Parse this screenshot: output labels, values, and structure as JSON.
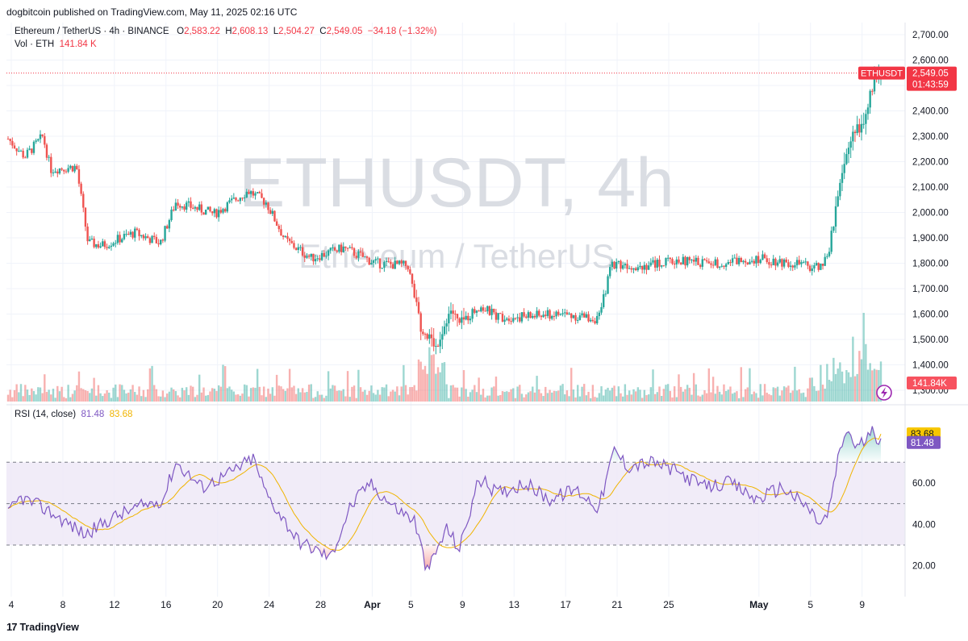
{
  "publisher_line": "dogbitcoin published on TradingView.com, May 11, 2025 02:16 UTC",
  "legend": {
    "symbol": "Ethereum / TetherUS · 4h · BINANCE",
    "o_label": "O",
    "o": "2,583.22",
    "h_label": "H",
    "h": "2,608.13",
    "l_label": "L",
    "l": "2,504.27",
    "c_label": "C",
    "c": "2,549.05",
    "change": "−34.18 (−1.32%)",
    "vol_label": "Vol · ETH",
    "vol": "141.84 K"
  },
  "rsi_legend": {
    "label": "RSI (14, close)",
    "rsi": "81.48",
    "ma": "83.68"
  },
  "watermark": {
    "main": "ETHUSDT, 4h",
    "sub": "Ethereum / TetherUS"
  },
  "price_tag": {
    "symbol": "ETHUSDT",
    "price": "2,549.05",
    "countdown": "01:43:59"
  },
  "volume_tag": "141.84K",
  "rsi_tags": {
    "ma": "83.68",
    "rsi": "81.48"
  },
  "footer": {
    "brand": "TradingView",
    "logo": "17"
  },
  "colors": {
    "up": "#26a69a",
    "down": "#ef5350",
    "rsi": "#7e57c2",
    "rsi_ma": "#f0b400",
    "band": "#ede7f6"
  },
  "chart_data": {
    "type": "candlestick",
    "price_axis": {
      "ticks": [
        "2,700.00",
        "2,600.00",
        "2,500.00",
        "2,400.00",
        "2,300.00",
        "2,200.00",
        "2,100.00",
        "2,000.00",
        "1,900.00",
        "1,800.00",
        "1,700.00",
        "1,600.00",
        "1,500.00",
        "1,400.00",
        "1,300.00"
      ],
      "range": [
        1290,
        2735
      ]
    },
    "rsi_axis": {
      "ticks": [
        "60.00",
        "40.00",
        "20.00"
      ],
      "range": [
        12,
        92
      ],
      "bands": [
        30,
        50,
        70
      ]
    },
    "time_axis": [
      "4",
      "8",
      "12",
      "16",
      "20",
      "24",
      "28",
      "Apr",
      "5",
      "9",
      "13",
      "17",
      "21",
      "25",
      "May",
      "5",
      "9"
    ],
    "anchors": [
      {
        "d": 0,
        "p": 2290
      },
      {
        "d": 1.3,
        "p": 2220
      },
      {
        "d": 2.7,
        "p": 2300
      },
      {
        "d": 3.3,
        "p": 2170
      },
      {
        "d": 5.3,
        "p": 2180
      },
      {
        "d": 6.2,
        "p": 1880
      },
      {
        "d": 7.3,
        "p": 1870
      },
      {
        "d": 9.8,
        "p": 1920
      },
      {
        "d": 11.8,
        "p": 1880
      },
      {
        "d": 13.0,
        "p": 2040
      },
      {
        "d": 16.0,
        "p": 1995
      },
      {
        "d": 18.6,
        "p": 2085
      },
      {
        "d": 20.0,
        "p": 2040
      },
      {
        "d": 21.5,
        "p": 1890
      },
      {
        "d": 23.5,
        "p": 1820
      },
      {
        "d": 26.0,
        "p": 1860
      },
      {
        "d": 28.5,
        "p": 1800
      },
      {
        "d": 31.0,
        "p": 1790
      },
      {
        "d": 32.0,
        "p": 1550
      },
      {
        "d": 33.2,
        "p": 1470
      },
      {
        "d": 34.3,
        "p": 1620
      },
      {
        "d": 35.0,
        "p": 1560
      },
      {
        "d": 36.5,
        "p": 1630
      },
      {
        "d": 38.0,
        "p": 1590
      },
      {
        "d": 40.0,
        "p": 1590
      },
      {
        "d": 43.0,
        "p": 1600
      },
      {
        "d": 45.8,
        "p": 1580
      },
      {
        "d": 46.8,
        "p": 1800
      },
      {
        "d": 49.0,
        "p": 1790
      },
      {
        "d": 52.0,
        "p": 1810
      },
      {
        "d": 55.0,
        "p": 1800
      },
      {
        "d": 58.0,
        "p": 1820
      },
      {
        "d": 61.0,
        "p": 1800
      },
      {
        "d": 62.5,
        "p": 1780
      },
      {
        "d": 63.5,
        "p": 1815
      },
      {
        "d": 64.0,
        "p": 1960
      },
      {
        "d": 64.8,
        "p": 2180
      },
      {
        "d": 65.5,
        "p": 2320
      },
      {
        "d": 66.3,
        "p": 2340
      },
      {
        "d": 67.2,
        "p": 2540
      },
      {
        "d": 67.6,
        "p": 2549
      }
    ],
    "rsi_anchors": [
      {
        "d": 0,
        "v": 45
      },
      {
        "d": 1,
        "v": 53
      },
      {
        "d": 3,
        "v": 47
      },
      {
        "d": 6,
        "v": 35
      },
      {
        "d": 8,
        "v": 43
      },
      {
        "d": 10,
        "v": 48
      },
      {
        "d": 12,
        "v": 52
      },
      {
        "d": 13,
        "v": 70
      },
      {
        "d": 15,
        "v": 58
      },
      {
        "d": 17,
        "v": 64
      },
      {
        "d": 19,
        "v": 72
      },
      {
        "d": 20,
        "v": 55
      },
      {
        "d": 22.5,
        "v": 32
      },
      {
        "d": 25,
        "v": 24
      },
      {
        "d": 26.5,
        "v": 48
      },
      {
        "d": 28,
        "v": 60
      },
      {
        "d": 30,
        "v": 48
      },
      {
        "d": 31.5,
        "v": 42
      },
      {
        "d": 32.5,
        "v": 17
      },
      {
        "d": 34,
        "v": 38
      },
      {
        "d": 35,
        "v": 28
      },
      {
        "d": 36.5,
        "v": 62
      },
      {
        "d": 38,
        "v": 55
      },
      {
        "d": 40,
        "v": 60
      },
      {
        "d": 42,
        "v": 52
      },
      {
        "d": 44,
        "v": 57
      },
      {
        "d": 45.8,
        "v": 48
      },
      {
        "d": 47,
        "v": 76
      },
      {
        "d": 48,
        "v": 68
      },
      {
        "d": 50,
        "v": 70
      },
      {
        "d": 52,
        "v": 65
      },
      {
        "d": 54,
        "v": 58
      },
      {
        "d": 56,
        "v": 60
      },
      {
        "d": 58,
        "v": 52
      },
      {
        "d": 60,
        "v": 58
      },
      {
        "d": 62,
        "v": 48
      },
      {
        "d": 63,
        "v": 40
      },
      {
        "d": 63.6,
        "v": 45
      },
      {
        "d": 64.3,
        "v": 70
      },
      {
        "d": 65,
        "v": 86
      },
      {
        "d": 65.8,
        "v": 77
      },
      {
        "d": 67,
        "v": 84
      },
      {
        "d": 67.6,
        "v": 81.5
      }
    ],
    "rsi_ma_last": 83.68
  }
}
